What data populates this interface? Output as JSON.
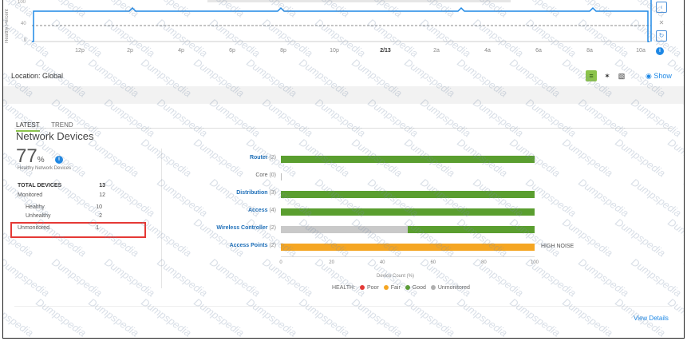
{
  "timeline": {
    "y_axis_label": "Healthy Percent",
    "y_ticks": [
      "100",
      "40",
      "0"
    ],
    "x_ticks": [
      "12p",
      "2p",
      "4p",
      "6p",
      "8p",
      "10p",
      "2/13",
      "2a",
      "4a",
      "6a",
      "8a",
      "10a"
    ],
    "x_tick_bold": "2/13",
    "side_controls": [
      "chevron-left-icon",
      "close-icon",
      "refresh-icon"
    ]
  },
  "location": {
    "label": "Location: Global",
    "show_link": "Show"
  },
  "tabs": [
    {
      "label": "LATEST",
      "active": true
    },
    {
      "label": "TREND",
      "active": false
    }
  ],
  "summary": {
    "title": "Network Devices",
    "percent": "77",
    "percent_unit": "%",
    "percent_caption": "Healthy Network Devices",
    "rows": [
      {
        "label": "TOTAL DEVICES",
        "value": "13"
      },
      {
        "label": "Monitored",
        "value": "12"
      },
      {
        "label": "Healthy",
        "value": "10"
      },
      {
        "label": "Unhealthy",
        "value": "2"
      },
      {
        "label": "Unmonitored",
        "value": "1"
      }
    ]
  },
  "chart_data": {
    "type": "bar",
    "orientation": "horizontal",
    "stacked": true,
    "categories": [
      "Router (2)",
      "Core (0)",
      "Distribution (3)",
      "Access (4)",
      "Wireless Controller (2)",
      "Access Points (2)"
    ],
    "series": [
      {
        "name": "Good",
        "color": "#5a9e2f",
        "values": [
          100,
          0,
          100,
          100,
          50,
          0
        ]
      },
      {
        "name": "Fair",
        "color": "#f5a623",
        "values": [
          0,
          0,
          0,
          0,
          0,
          100
        ]
      },
      {
        "name": "Unmonitored",
        "color": "#c9c9c9",
        "values": [
          0,
          0,
          0,
          0,
          50,
          0
        ]
      }
    ],
    "annotations": [
      {
        "category": "Access Points (2)",
        "text": "HIGH NOISE"
      }
    ],
    "xlabel": "Device Count (%)",
    "xlim": [
      0,
      100
    ],
    "x_ticks": [
      "0",
      "20",
      "40",
      "60",
      "80",
      "100"
    ],
    "legend": {
      "title": "HEALTH:",
      "items": [
        {
          "label": "Poor",
          "color": "#e53935"
        },
        {
          "label": "Fair",
          "color": "#f5a623"
        },
        {
          "label": "Good",
          "color": "#5a9e2f"
        },
        {
          "label": "Unmonitored",
          "color": "#b0b0b0"
        }
      ]
    }
  },
  "footer": {
    "view_details": "View Details"
  }
}
